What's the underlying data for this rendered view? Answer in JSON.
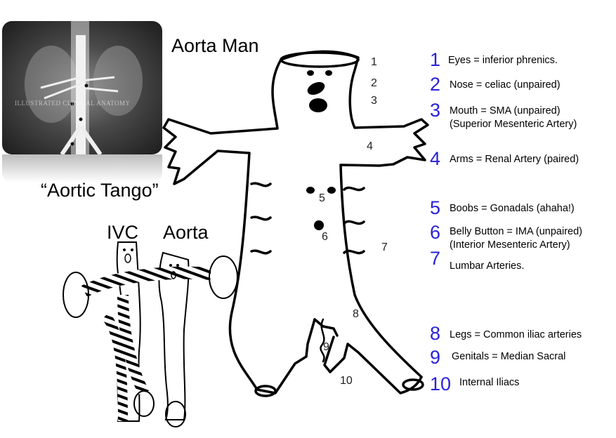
{
  "title": "Aorta Man",
  "tango_caption": "“Aortic Tango”",
  "ivc_label": "IVC",
  "aorta_label": "Aorta",
  "xray_watermark": "ILLUSTRATED CLINICAL ANATOMY",
  "figure_numbers": [
    "1",
    "2",
    "3",
    "4",
    "5",
    "6",
    "7",
    "8",
    "9",
    "10"
  ],
  "legend": [
    {
      "num": "1",
      "lines": [
        "Eyes = inferior phrenics."
      ]
    },
    {
      "num": "2",
      "lines": [
        "Nose = celiac (unpaired)"
      ]
    },
    {
      "num": "3",
      "lines": [
        "Mouth = SMA (unpaired)",
        "(Superior Mesenteric Artery)"
      ]
    },
    {
      "num": "4",
      "lines": [
        "Arms = Renal Artery (paired)"
      ]
    },
    {
      "num": "5",
      "lines": [
        "Boobs = Gonadals (ahaha!)"
      ]
    },
    {
      "num": "6",
      "lines": [
        "Belly Button = IMA (unpaired)",
        "(Interior Mesenteric Artery)"
      ]
    },
    {
      "num": "7",
      "lines": [
        "Lumbar Arteries."
      ]
    },
    {
      "num": "8",
      "lines": [
        "Legs = Common iliac arteries"
      ]
    },
    {
      "num": "9",
      "lines": [
        "Genitals = Median Sacral"
      ]
    },
    {
      "num": "10",
      "lines": [
        "Internal Iliacs"
      ]
    }
  ],
  "colors": {
    "legend_number": "#2a22d8",
    "ink": "#000000"
  }
}
